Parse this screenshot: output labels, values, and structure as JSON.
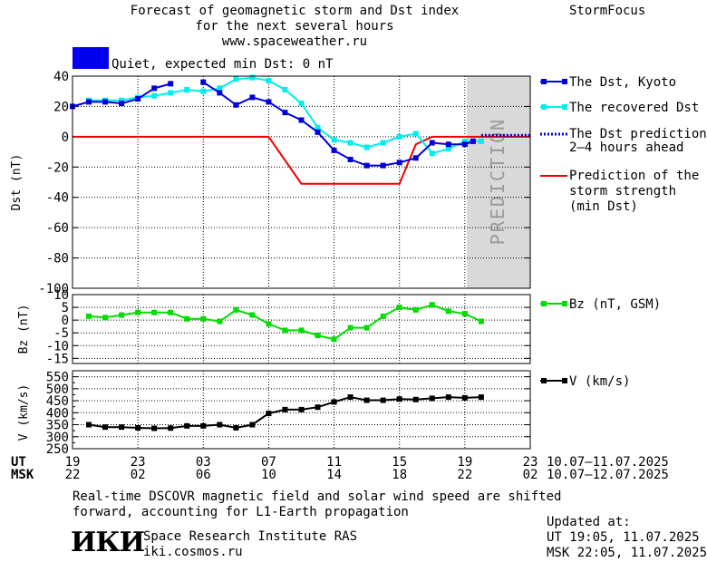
{
  "header": {
    "title_line1": "Forecast of geomagnetic storm and Dst index",
    "title_line2": "for the next several hours",
    "site": "www.spaceweather.ru",
    "brand": "StormFocus",
    "status": "Quiet, expected min Dst: 0 nT",
    "status_color": "#0000ee"
  },
  "legend": {
    "dst_kyoto": "The Dst, Kyoto",
    "dst_recovered": "The recovered Dst",
    "dst_prediction_1": "The Dst prediction",
    "dst_prediction_2": "2–4 hours ahead",
    "storm_1": "Prediction of the",
    "storm_2": "storm strength",
    "storm_3": "(min Dst)",
    "bz": "Bz (nT, GSM)",
    "v": "V (km/s)"
  },
  "prediction_label": "PREDICTION",
  "axes": {
    "ut_label": "UT",
    "msk_label": "MSK",
    "ut_ticks": [
      "19",
      "23",
      "03",
      "07",
      "11",
      "15",
      "19",
      "23"
    ],
    "msk_ticks": [
      "22",
      "02",
      "06",
      "10",
      "14",
      "18",
      "22",
      "02"
    ],
    "ut_range": "10.07–11.07.2025",
    "msk_range": "10.07–12.07.2025"
  },
  "footer": {
    "note_line1": "Real-time DSCOVR magnetic field and solar wind speed are shifted",
    "note_line2": "forward, accounting for L1-Earth propagation",
    "logo_text": "ИКИ",
    "institute": "Space Research Institute RAS",
    "institute_url": "iki.cosmos.ru",
    "updated_label": "Updated at:",
    "updated_ut": "UT  19:05, 11.07.2025",
    "updated_msk": "MSK 22:05, 11.07.2025"
  },
  "chart_data": [
    {
      "type": "line",
      "ylabel": "Dst (nT)",
      "ylim": [
        -100,
        40
      ],
      "yticks": [
        40,
        20,
        0,
        -20,
        -40,
        -60,
        -80,
        -100
      ],
      "xlim": [
        19,
        47
      ],
      "prediction_region": [
        43,
        47
      ],
      "series": [
        {
          "name": "The Dst, Kyoto",
          "color": "#0000dd",
          "marker": "square",
          "segments": [
            {
              "x": [
                19,
                20,
                21,
                22,
                23,
                24,
                25
              ],
              "y": [
                20,
                23,
                23,
                22,
                25,
                32,
                35
              ]
            },
            {
              "x": [
                27,
                28,
                29,
                30,
                31,
                32,
                33,
                34,
                35,
                36,
                37,
                38,
                39,
                40,
                41,
                42,
                43,
                43.5
              ],
              "y": [
                36,
                29,
                21,
                26,
                23,
                16,
                11,
                3,
                -9,
                -15,
                -19,
                -19,
                -17,
                -14,
                -4,
                -5,
                -5,
                -3
              ]
            }
          ]
        },
        {
          "name": "The recovered Dst",
          "color": "#00eeee",
          "marker": "square",
          "x": [
            20,
            21,
            22,
            23,
            24,
            25,
            26,
            27,
            28,
            29,
            30,
            31,
            32,
            33,
            34,
            35,
            36,
            37,
            38,
            39,
            40,
            41,
            42,
            43,
            44
          ],
          "y": [
            24,
            24,
            24,
            26,
            27,
            29,
            31,
            30,
            32,
            38,
            39,
            37,
            31,
            22,
            6,
            -2,
            -4,
            -7,
            -4,
            0,
            2,
            -11,
            -8,
            -3,
            -3
          ]
        },
        {
          "name": "The Dst prediction 2–4 hours ahead",
          "color": "#0000cc",
          "style": "dotted",
          "x": [
            44,
            47
          ],
          "y": [
            1,
            1
          ]
        },
        {
          "name": "Prediction of the storm strength (min Dst)",
          "color": "#ee0000",
          "x": [
            19,
            31,
            33,
            37,
            39,
            40,
            41,
            47
          ],
          "y": [
            0,
            0,
            -31,
            -31,
            -31,
            -5,
            0,
            0
          ]
        }
      ]
    },
    {
      "type": "line",
      "ylabel": "Bz (nT)",
      "ylim": [
        -17,
        10
      ],
      "yticks": [
        10,
        5,
        0,
        -5,
        -10,
        -15
      ],
      "xlim": [
        19,
        47
      ],
      "series": [
        {
          "name": "Bz (nT, GSM)",
          "color": "#00dd00",
          "marker": "square",
          "x": [
            20,
            21,
            22,
            23,
            24,
            25,
            26,
            27,
            28,
            29,
            30,
            31,
            32,
            33,
            34,
            35,
            36,
            37,
            38,
            39,
            40,
            41,
            42,
            43,
            44
          ],
          "y": [
            1.5,
            1,
            2,
            3,
            3,
            3,
            0.5,
            0.5,
            -0.5,
            4,
            2,
            -1.5,
            -4,
            -4,
            -6,
            -7.5,
            -3,
            -3,
            1.5,
            5,
            4,
            6,
            3.5,
            2.5,
            -0.5
          ]
        }
      ]
    },
    {
      "type": "line",
      "ylabel": "V (km/s)",
      "ylim": [
        250,
        575
      ],
      "yticks": [
        550,
        500,
        450,
        400,
        350,
        300,
        250
      ],
      "yticks_minor": [
        575,
        525,
        475,
        425,
        375,
        325,
        275
      ],
      "xlim": [
        19,
        47
      ],
      "series": [
        {
          "name": "V (km/s)",
          "color": "#000000",
          "marker": "square",
          "x": [
            20,
            21,
            22,
            23,
            24,
            25,
            26,
            27,
            28,
            29,
            30,
            31,
            32,
            33,
            34,
            35,
            36,
            37,
            38,
            39,
            40,
            41,
            42,
            43,
            44
          ],
          "y": [
            350,
            340,
            340,
            337,
            335,
            336,
            345,
            345,
            350,
            337,
            350,
            397,
            413,
            413,
            423,
            445,
            465,
            452,
            452,
            457,
            455,
            460,
            465,
            462,
            465
          ]
        }
      ]
    }
  ]
}
